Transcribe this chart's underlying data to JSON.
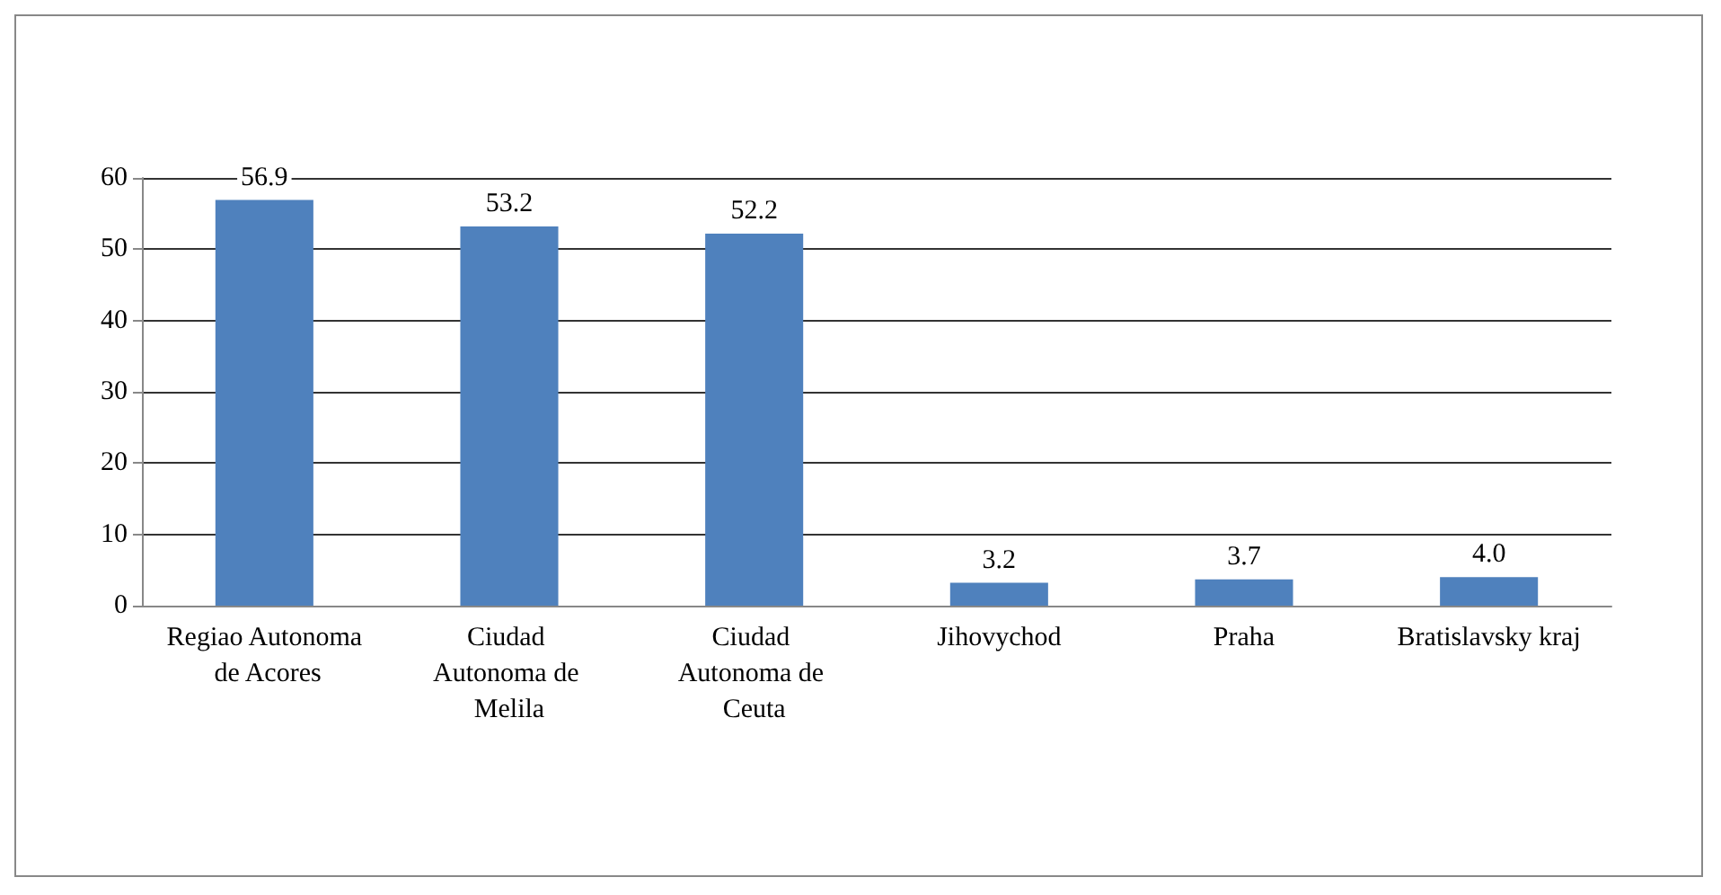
{
  "chart_data": {
    "type": "bar",
    "categories": [
      "Regiao Autonoma de Acores",
      "Ciudad Autonoma de Melila",
      "Ciudad Autonoma de Ceuta",
      "Jihovychod",
      "Praha",
      "Bratislavsky kraj"
    ],
    "values": [
      56.9,
      53.2,
      52.2,
      3.2,
      3.7,
      4.0
    ],
    "value_labels": [
      "56.9",
      "53.2",
      "52.2",
      "3.2",
      "3.7",
      "4.0"
    ],
    "color": "#4f81bd",
    "ylim": [
      0,
      60
    ],
    "yticks": [
      0,
      10,
      20,
      30,
      40,
      50,
      60
    ],
    "grid": "y"
  }
}
